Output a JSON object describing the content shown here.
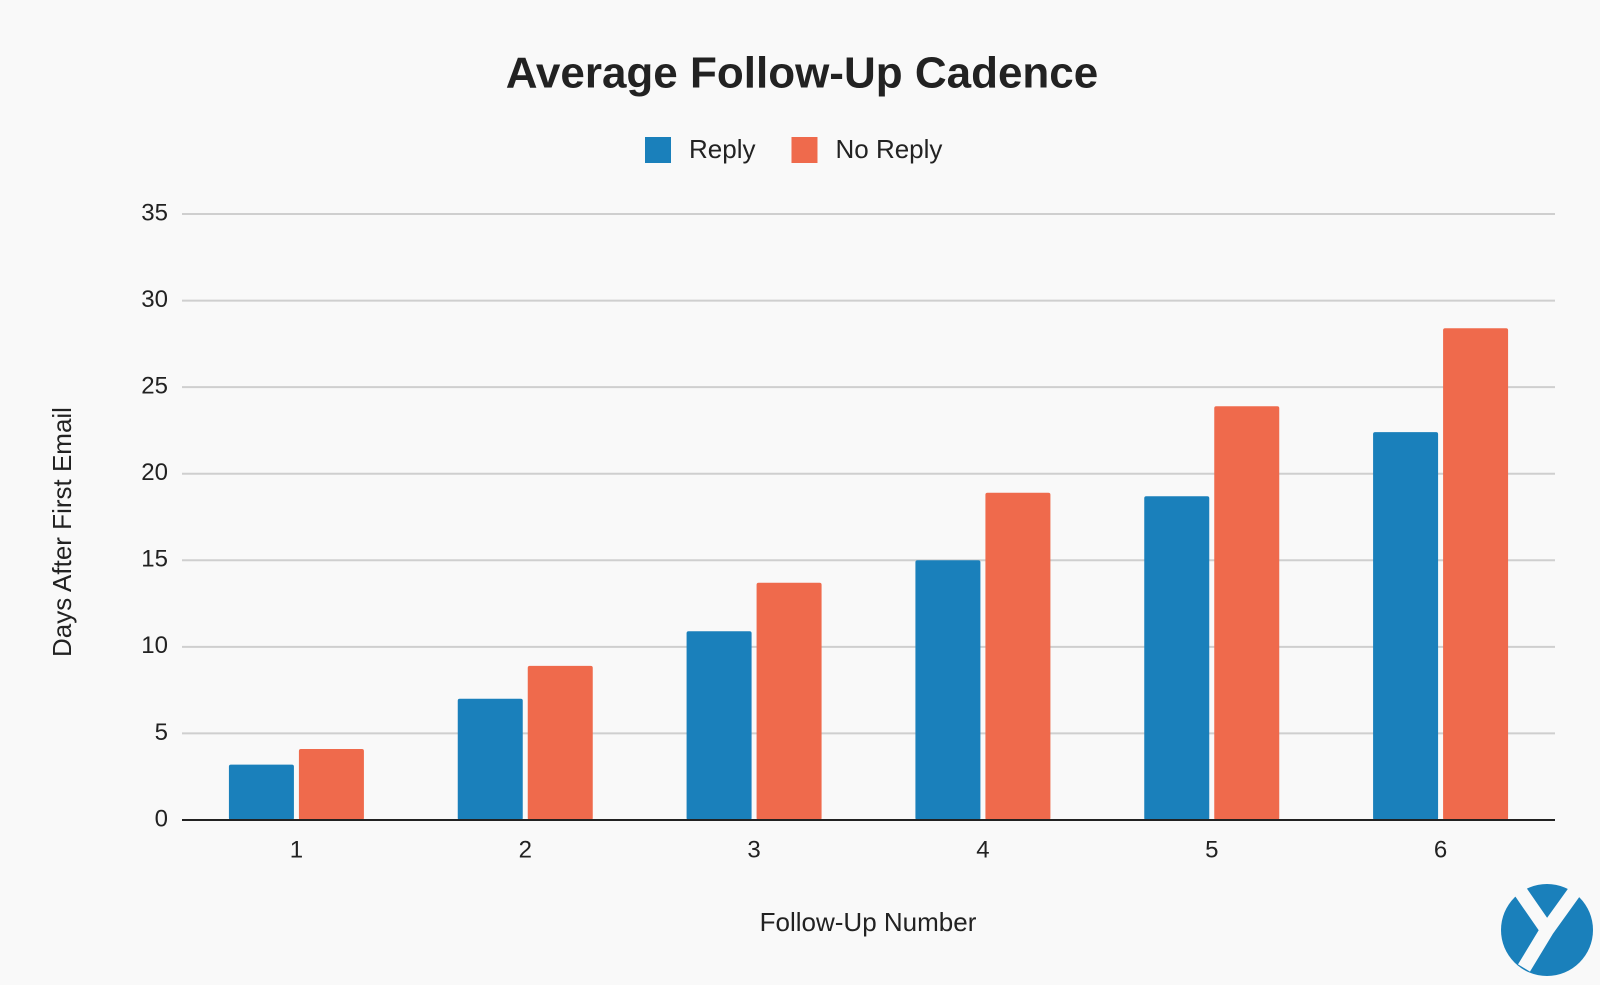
{
  "chart_data": {
    "type": "bar",
    "title": "Average Follow-Up Cadence",
    "x_label": "Follow-Up Number",
    "y_label": "Days After First Email",
    "categories": [
      "1",
      "2",
      "3",
      "4",
      "5",
      "6"
    ],
    "series": [
      {
        "name": "Reply",
        "color": "#1a80bb",
        "values": [
          3.2,
          7,
          10.9,
          15,
          18.7,
          22.4
        ]
      },
      {
        "name": "No Reply",
        "color": "#ef6a4c",
        "values": [
          4.1,
          8.9,
          13.7,
          18.9,
          23.9,
          28.4
        ]
      }
    ],
    "ylim": [
      0,
      35
    ],
    "yticks": [
      0,
      5,
      10,
      15,
      20,
      25,
      30,
      35
    ],
    "grid": true,
    "legend": "top"
  }
}
